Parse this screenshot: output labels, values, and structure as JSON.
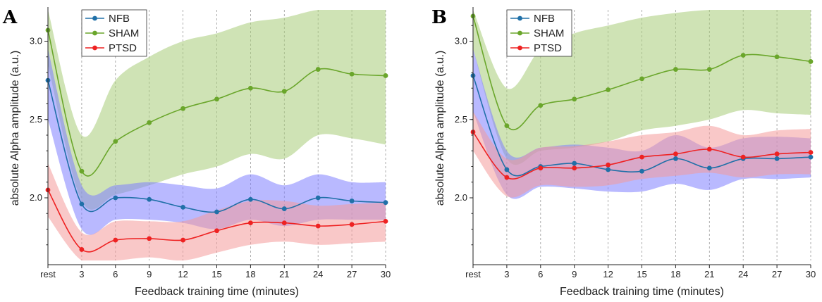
{
  "chart_data": [
    {
      "type": "line",
      "panel_label": "A",
      "xlabel": "Feedback training time (minutes)",
      "ylabel": "absolute Alpha amplitude (a.u.)",
      "categories": [
        "rest",
        "3",
        "6",
        "9",
        "12",
        "15",
        "18",
        "21",
        "24",
        "27",
        "30"
      ],
      "y_ticks": [
        "2.0",
        "2.5",
        "3.0"
      ],
      "ylim": [
        1.6,
        3.2
      ],
      "legend_position": "top-left",
      "grid": "vertical dashed",
      "series": [
        {
          "name": "NFB",
          "color": "#2070a8",
          "band_color": "#8080ff",
          "values": [
            2.75,
            1.96,
            2.0,
            1.99,
            1.94,
            1.91,
            1.99,
            1.93,
            2.0,
            1.98,
            1.97
          ],
          "upper": [
            2.95,
            2.08,
            2.08,
            2.1,
            2.08,
            2.06,
            2.15,
            2.08,
            2.15,
            2.1,
            2.1
          ],
          "lower": [
            2.5,
            1.8,
            1.86,
            1.86,
            1.84,
            1.8,
            1.86,
            1.82,
            1.86,
            1.86,
            1.86
          ]
        },
        {
          "name": "SHAM",
          "color": "#6aa62b",
          "band_color": "#a8cc78",
          "values": [
            3.07,
            2.17,
            2.36,
            2.48,
            2.57,
            2.63,
            2.7,
            2.68,
            2.82,
            2.79,
            2.78
          ],
          "upper": [
            3.2,
            2.4,
            2.75,
            2.9,
            3.0,
            3.05,
            3.12,
            3.15,
            3.2,
            3.2,
            3.2
          ],
          "lower": [
            2.85,
            1.98,
            2.02,
            2.08,
            2.15,
            2.2,
            2.28,
            2.25,
            2.4,
            2.38,
            2.34
          ]
        },
        {
          "name": "PTSD",
          "color": "#ee2222",
          "band_color": "#f49a9a",
          "values": [
            2.05,
            1.67,
            1.73,
            1.74,
            1.73,
            1.79,
            1.84,
            1.84,
            1.82,
            1.83,
            1.85
          ],
          "upper": [
            2.22,
            1.78,
            1.85,
            1.85,
            1.85,
            1.92,
            1.98,
            1.98,
            1.95,
            1.96,
            1.97
          ],
          "lower": [
            1.88,
            1.6,
            1.6,
            1.62,
            1.6,
            1.65,
            1.7,
            1.72,
            1.7,
            1.71,
            1.72
          ]
        }
      ]
    },
    {
      "type": "line",
      "panel_label": "B",
      "xlabel": "Feedback training time (minutes)",
      "ylabel": "absolute Alpha amplitude (a.u.)",
      "categories": [
        "rest",
        "3",
        "6",
        "9",
        "12",
        "15",
        "18",
        "21",
        "24",
        "27",
        "30"
      ],
      "y_ticks": [
        "2.0",
        "2.5",
        "3.0"
      ],
      "ylim": [
        1.6,
        3.2
      ],
      "legend_position": "top-left",
      "grid": "vertical dashed",
      "series": [
        {
          "name": "NFB",
          "color": "#2070a8",
          "band_color": "#8080ff",
          "values": [
            2.78,
            2.18,
            2.2,
            2.22,
            2.18,
            2.17,
            2.25,
            2.19,
            2.25,
            2.25,
            2.26
          ],
          "upper": [
            2.95,
            2.3,
            2.32,
            2.34,
            2.32,
            2.3,
            2.4,
            2.32,
            2.38,
            2.39,
            2.38
          ],
          "lower": [
            2.55,
            2.02,
            2.07,
            2.06,
            2.04,
            2.04,
            2.09,
            2.05,
            2.12,
            2.12,
            2.13
          ]
        },
        {
          "name": "SHAM",
          "color": "#6aa62b",
          "band_color": "#a8cc78",
          "values": [
            3.16,
            2.46,
            2.59,
            2.63,
            2.69,
            2.76,
            2.82,
            2.82,
            2.91,
            2.9,
            2.87
          ],
          "upper": [
            3.2,
            2.7,
            2.95,
            3.05,
            3.1,
            3.15,
            3.18,
            3.2,
            3.2,
            3.2,
            3.2
          ],
          "lower": [
            2.95,
            2.25,
            2.3,
            2.32,
            2.36,
            2.43,
            2.46,
            2.5,
            2.56,
            2.54,
            2.53
          ]
        },
        {
          "name": "PTSD",
          "color": "#ee2222",
          "band_color": "#f49a9a",
          "values": [
            2.42,
            2.13,
            2.19,
            2.19,
            2.21,
            2.26,
            2.28,
            2.31,
            2.26,
            2.28,
            2.29
          ],
          "upper": [
            2.55,
            2.25,
            2.32,
            2.33,
            2.36,
            2.4,
            2.42,
            2.46,
            2.4,
            2.43,
            2.44
          ],
          "lower": [
            2.3,
            2.01,
            2.08,
            2.07,
            2.08,
            2.12,
            2.14,
            2.16,
            2.13,
            2.15,
            2.15
          ]
        }
      ]
    }
  ]
}
